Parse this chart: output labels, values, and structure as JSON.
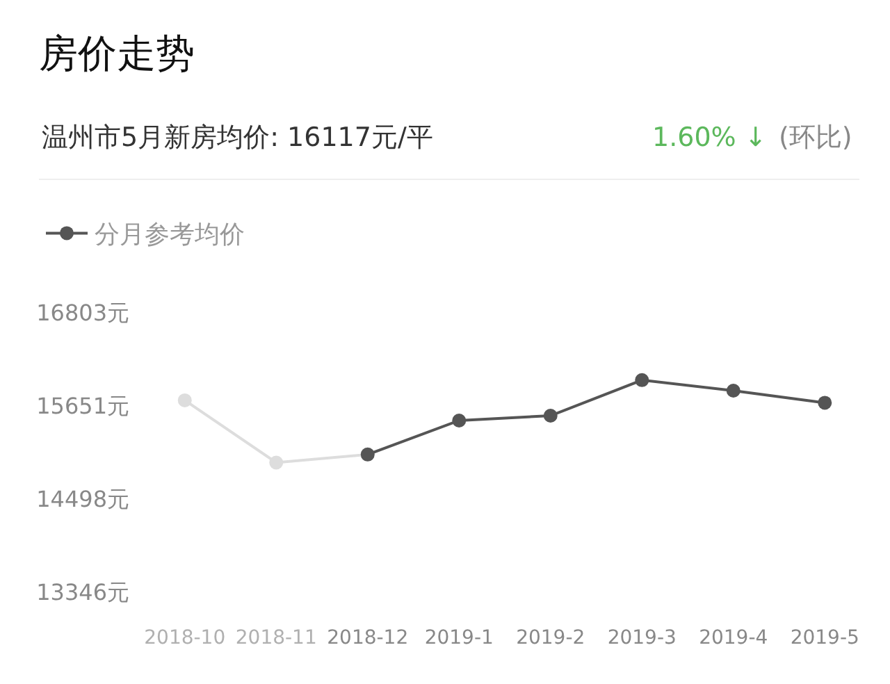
{
  "chart_data": {
    "type": "line",
    "title": "房价走势",
    "subtitle": "温州市5月新房均价: 16117元/平",
    "annotations": [
      "1.60% ↓",
      "(环比)"
    ],
    "categories": [
      "2018-10",
      "2018-11",
      "2018-12",
      "2019-1",
      "2019-2",
      "2019-3",
      "2019-4",
      "2019-5"
    ],
    "series": [
      {
        "color": "#dddddd",
        "values": [
          15720,
          14950,
          15050,
          null,
          null,
          null,
          null,
          null
        ]
      },
      {
        "name": "分月参考均价",
        "color": "#555555",
        "values": [
          null,
          null,
          15050,
          15470,
          15530,
          15970,
          15840,
          15690
        ]
      }
    ],
    "ylim": [
      13346,
      16803
    ],
    "yticks": [
      {
        "value": 13346,
        "label": "13346元"
      },
      {
        "value": 14498,
        "label": "14498元"
      },
      {
        "value": 15651,
        "label": "15651元"
      },
      {
        "value": 16803,
        "label": "16803元"
      }
    ],
    "legend": "top left",
    "marker": "circle",
    "line_style": "solid"
  }
}
